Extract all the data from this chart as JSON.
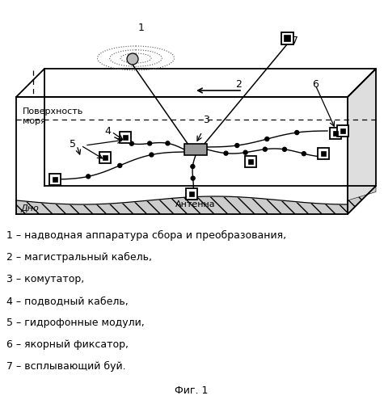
{
  "title": "Фиг. 1",
  "background_color": "#ffffff",
  "legend_items": [
    "1 – надводная аппаратура сбора и преобразования,",
    "2 – магистральный кабель,",
    "3 – комутатор,",
    "4 – подводный кабель,",
    "5 – гидрофонные модули,",
    "6 – якорный фиксатор,",
    "7 – всплывающий буй."
  ],
  "sea_surface_label": "Поверхность\nморя",
  "bottom_label": "Дно",
  "antenna_label": "Антенна"
}
